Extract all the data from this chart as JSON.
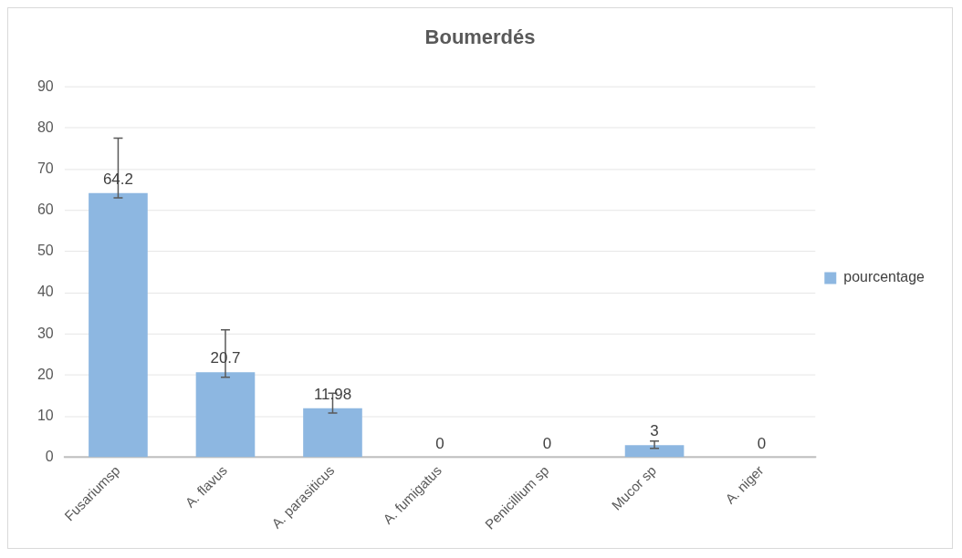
{
  "chart_data": {
    "type": "bar",
    "title": "Boumerdés",
    "categories": [
      "Fusariumsp",
      "A. flavus",
      "A. parasiticus",
      "A. fumigatus",
      "Penicillium sp",
      "Mucor sp",
      "A. niger"
    ],
    "series": [
      {
        "name": "pourcentage",
        "color": "#8db7e1",
        "values": [
          64.2,
          20.7,
          11.98,
          0,
          0,
          3,
          0
        ],
        "errors": [
          [
            63,
            77.5
          ],
          [
            19.5,
            31
          ],
          [
            10.8,
            15.6
          ],
          null,
          null,
          [
            2.2,
            4
          ],
          null
        ]
      }
    ],
    "ylim": [
      0,
      90
    ],
    "yticks": [
      0,
      10,
      20,
      30,
      40,
      50,
      60,
      70,
      80,
      90
    ],
    "grid": "y",
    "legend": "right",
    "data_labels": true
  }
}
